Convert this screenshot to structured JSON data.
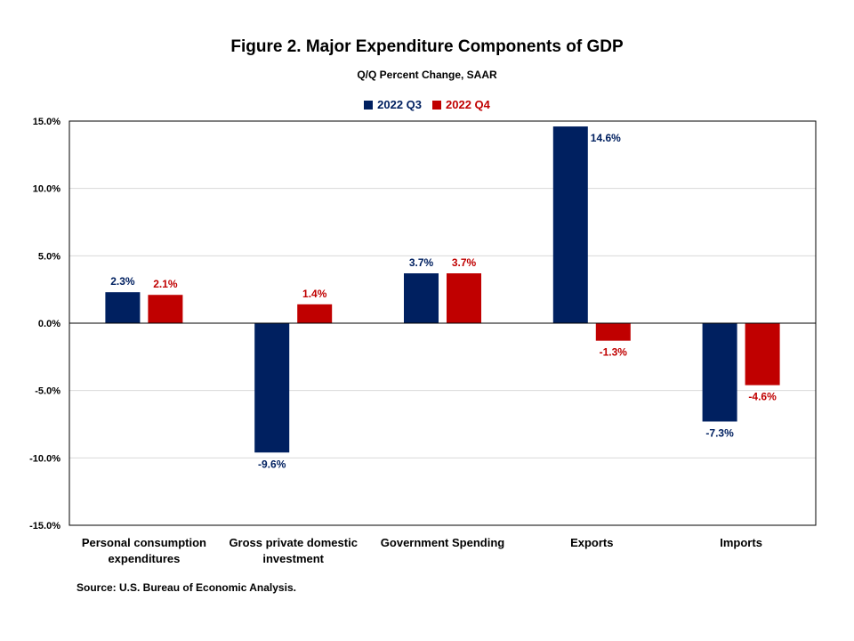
{
  "chart_data": {
    "type": "bar",
    "title": "Figure 2. Major Expenditure  Components  of GDP",
    "subtitle": "Q/Q Percent Change, SAAR",
    "xlabel": "",
    "ylabel": "",
    "ylim": [
      -15,
      15
    ],
    "yticks": [
      15,
      10,
      5,
      0,
      -5,
      -10,
      -15
    ],
    "ytick_labels": [
      "15.0%",
      "10.0%",
      "5.0%",
      "0.0%",
      "-5.0%",
      "-10.0%",
      "-15.0%"
    ],
    "categories": [
      "Personal consumption expenditures",
      "Gross private domestic investment",
      "Government Spending",
      "Exports",
      "Imports"
    ],
    "category_lines": [
      [
        "Personal consumption",
        "expenditures"
      ],
      [
        "Gross private domestic",
        "investment"
      ],
      [
        "Government Spending"
      ],
      [
        "Exports"
      ],
      [
        "Imports"
      ]
    ],
    "series": [
      {
        "name": "2022 Q3",
        "color": "#002060",
        "values": [
          2.3,
          -9.6,
          3.7,
          14.6,
          -7.3
        ],
        "labels": [
          "2.3%",
          "-9.6%",
          "3.7%",
          "14.6%",
          "-7.3%"
        ]
      },
      {
        "name": "2022 Q4",
        "color": "#C00000",
        "values": [
          2.1,
          1.4,
          3.7,
          -1.3,
          -4.6
        ],
        "labels": [
          "2.1%",
          "1.4%",
          "3.7%",
          "-1.3%",
          "-4.6%"
        ]
      }
    ],
    "grid": true,
    "legend": "top-center"
  },
  "source": "Source: U.S. Bureau of Economic Analysis."
}
